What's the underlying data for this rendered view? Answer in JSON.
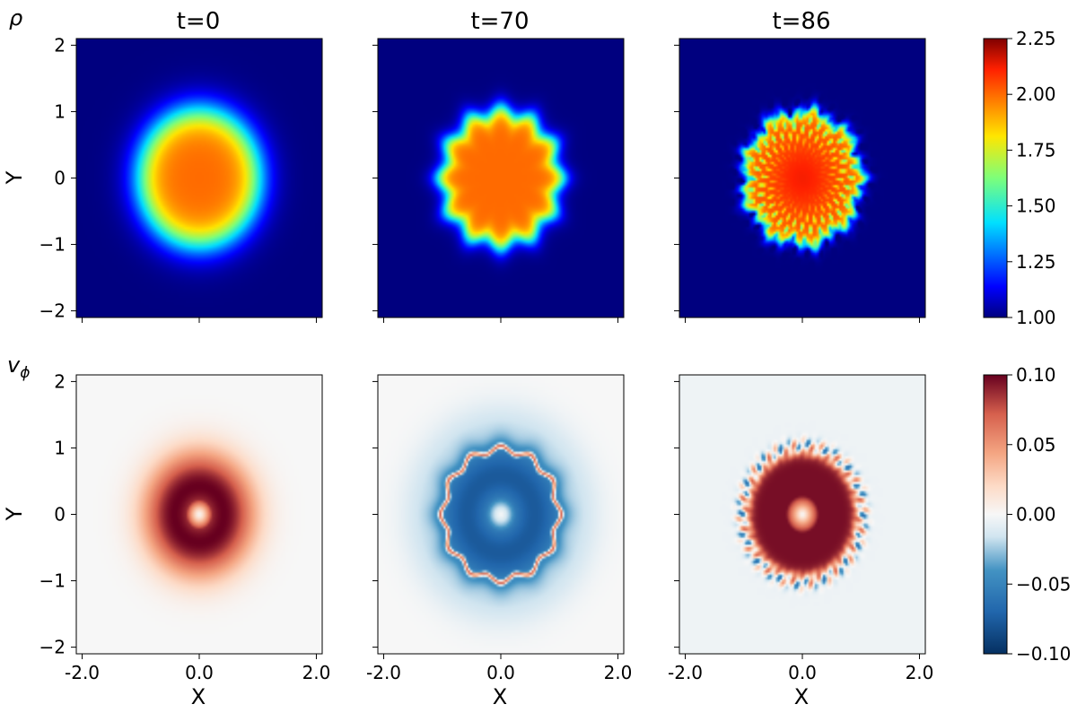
{
  "chart_data": {
    "type": "heatmap",
    "xlabel": "X",
    "ylabel": "Y",
    "xlim": [
      -2.1,
      2.1
    ],
    "ylim": [
      -2.1,
      2.1
    ],
    "x_ticks": [
      -2.0,
      0.0,
      2.0
    ],
    "x_tick_labels": [
      "-2.0",
      "0.0",
      "2.0"
    ],
    "y_ticks": [
      2,
      1,
      0,
      -1,
      -2
    ],
    "y_tick_labels": [
      "2",
      "1",
      "0",
      "−1",
      "−2"
    ],
    "times": [
      {
        "label": "t=0",
        "value": 0
      },
      {
        "label": "t=70",
        "value": 70
      },
      {
        "label": "t=86",
        "value": 86
      }
    ],
    "rows": [
      {
        "quantity": "rho",
        "label": "ρ",
        "colormap": "jet",
        "colorbar_ticks": [
          {
            "value": 2.25,
            "label": "2.25"
          },
          {
            "value": 2.0,
            "label": "2.00"
          },
          {
            "value": 1.75,
            "label": "1.75"
          },
          {
            "value": 1.5,
            "label": "1.50"
          },
          {
            "value": 1.25,
            "label": "1.25"
          },
          {
            "value": 1.0,
            "label": "1.00"
          }
        ],
        "vmin": 1.0,
        "vmax": 2.25,
        "background_value": 1.0,
        "core_value": 2.0,
        "blob_radius": 1.0,
        "interface_width": 0.15,
        "panels_perturbation": [
          "none",
          "wavy",
          "turbulent"
        ]
      },
      {
        "quantity": "v_phi",
        "label": "v",
        "label_sub": "ϕ",
        "colormap": "RdBu_r",
        "colorbar_ticks": [
          {
            "value": 0.1,
            "label": "0.10"
          },
          {
            "value": 0.05,
            "label": "0.05"
          },
          {
            "value": 0.0,
            "label": "0.00"
          },
          {
            "value": -0.05,
            "label": "−0.05"
          },
          {
            "value": -0.1,
            "label": "−0.10"
          }
        ],
        "vmin": -0.1,
        "vmax": 0.1,
        "panels_core_sign": [
          "positive",
          "negative",
          "positive"
        ]
      }
    ]
  }
}
